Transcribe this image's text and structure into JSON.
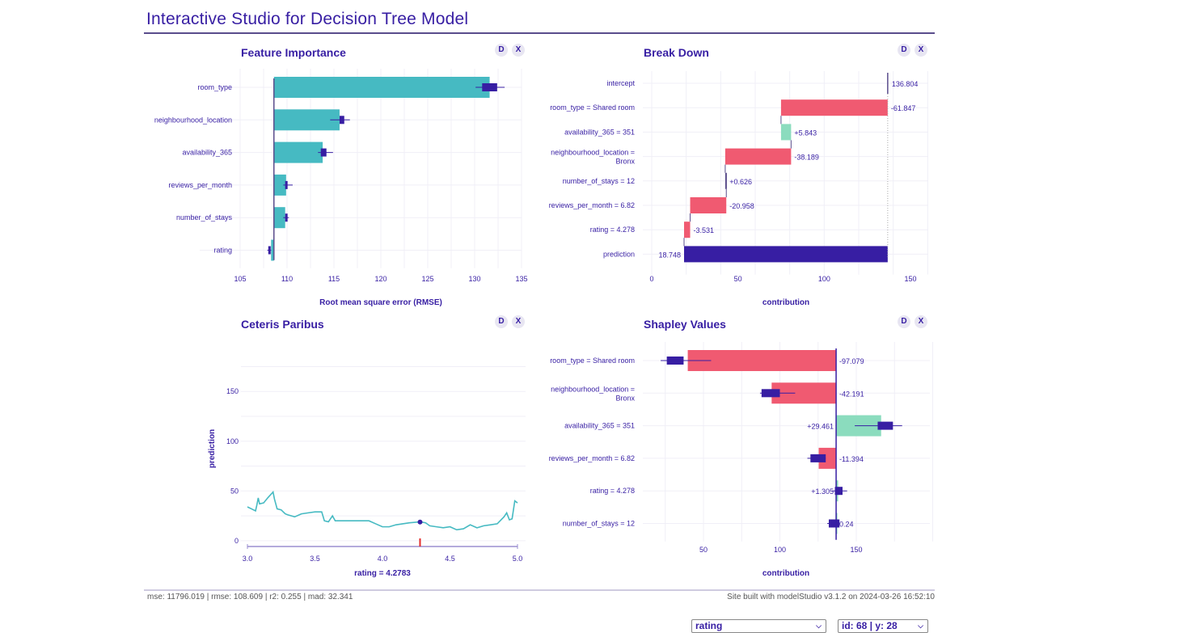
{
  "app": {
    "title": "Interactive Studio for Decision Tree Model"
  },
  "panel_buttons": {
    "describe": "D",
    "close": "X"
  },
  "panels": {
    "feature_importance": {
      "title": "Feature Importance"
    },
    "break_down": {
      "title": "Break Down"
    },
    "ceteris_paribus": {
      "title": "Ceteris Paribus"
    },
    "shapley": {
      "title": "Shapley Values"
    }
  },
  "colors": {
    "title": "#371ea3",
    "bar_fi": "#46bac2",
    "negative": "#f05a71",
    "positive": "#8bdcbe",
    "prediction": "#371ea3",
    "boxplot": "#371ea3",
    "grid": "#f0eff7",
    "cp_line": "#46bac2",
    "cp_marker": "#ae2c87"
  },
  "chart_data": [
    {
      "id": "feature_importance",
      "type": "bar",
      "title": "Feature Importance",
      "xlabel": "Root mean square error (RMSE)",
      "ylabel": "",
      "baseline": 108.6,
      "xlim": [
        105,
        135
      ],
      "xticks": [
        105,
        110,
        115,
        120,
        125,
        130,
        135
      ],
      "grid": true,
      "categories": [
        "room_type",
        "neighbourhood_location",
        "availability_365",
        "reviews_per_month",
        "number_of_stays",
        "rating"
      ],
      "values": [
        131.6,
        115.6,
        113.8,
        109.9,
        109.8,
        108.3
      ],
      "boxplot": [
        {
          "min": 130.1,
          "q1": 130.8,
          "q3": 132.4,
          "max": 133.2
        },
        {
          "min": 114.6,
          "q1": 115.6,
          "q3": 116.1,
          "max": 116.7
        },
        {
          "min": 113.3,
          "q1": 113.6,
          "q3": 114.2,
          "max": 114.9
        },
        {
          "min": 109.6,
          "q1": 109.8,
          "q3": 110.0,
          "max": 110.6
        },
        {
          "min": 109.6,
          "q1": 109.8,
          "q3": 109.9,
          "max": 110.2
        },
        {
          "min": 107.9,
          "q1": 108.0,
          "q3": 108.2,
          "max": 108.3
        }
      ]
    },
    {
      "id": "break_down",
      "type": "bar",
      "title": "Break Down",
      "xlabel": "contribution",
      "xlim": [
        0,
        155
      ],
      "xticks": [
        0,
        50,
        100,
        150
      ],
      "grid": true,
      "categories": [
        "intercept",
        "room_type = Shared room",
        "availability_365 = 351",
        "neighbourhood_location = Bronx",
        "number_of_stays = 12",
        "reviews_per_month = 6.82",
        "rating = 4.278",
        "prediction"
      ],
      "values": [
        136.804,
        -61.847,
        5.843,
        -38.189,
        0.626,
        -20.958,
        -3.531,
        18.748
      ],
      "labels": [
        "136.804",
        "-61.847",
        "+5.843",
        "-38.189",
        "+0.626",
        "-20.958",
        "-3.531",
        "18.748"
      ]
    },
    {
      "id": "ceteris_paribus",
      "type": "line",
      "title": "Ceteris Paribus",
      "xlabel": "rating = 4.2783",
      "ylabel": "prediction",
      "xlim": [
        3.0,
        5.0
      ],
      "ylim": [
        -5,
        190
      ],
      "xticks": [
        "3.0",
        "3.5",
        "4.0",
        "4.5",
        "5.0"
      ],
      "yticks": [
        0,
        50,
        100,
        150
      ],
      "grid": true,
      "observation": {
        "x": 4.2783,
        "y": 18.748
      },
      "x": [
        3.0,
        3.03,
        3.06,
        3.07,
        3.08,
        3.09,
        3.12,
        3.15,
        3.19,
        3.2,
        3.22,
        3.25,
        3.28,
        3.3,
        3.35,
        3.4,
        3.45,
        3.5,
        3.55,
        3.57,
        3.6,
        3.63,
        3.65,
        3.7,
        3.8,
        3.9,
        3.95,
        4.0,
        4.05,
        4.1,
        4.15,
        4.2,
        4.28,
        4.32,
        4.35,
        4.4,
        4.45,
        4.5,
        4.55,
        4.6,
        4.65,
        4.7,
        4.75,
        4.8,
        4.85,
        4.9,
        4.92,
        4.94,
        4.96,
        4.98,
        5.0
      ],
      "y": [
        34,
        32,
        30,
        36,
        43,
        37,
        38,
        43,
        49,
        42,
        32,
        31,
        27,
        26,
        24,
        27,
        28,
        29,
        29,
        20,
        19,
        25,
        20,
        20,
        20,
        20,
        17,
        14,
        14,
        16,
        17,
        18,
        19,
        18,
        15,
        14,
        13,
        14,
        11,
        12,
        16,
        13,
        15,
        16,
        17,
        24,
        28,
        21,
        22,
        40,
        38
      ]
    },
    {
      "id": "shapley",
      "type": "bar",
      "title": "Shapley Values",
      "xlabel": "contribution",
      "baseline": 136.804,
      "xlim": [
        18,
        200
      ],
      "xticks": [
        50,
        100,
        150
      ],
      "grid": true,
      "categories": [
        "room_type = Shared room",
        "neighbourhood_location = Bronx",
        "availability_365 = 351",
        "reviews_per_month = 6.82",
        "rating = 4.278",
        "number_of_stays = 12"
      ],
      "values": [
        -97.079,
        -42.191,
        29.461,
        -11.394,
        1.305,
        0.24
      ],
      "labels": [
        "-97.079",
        "-42.191",
        "+29.461",
        "-11.394",
        "+1.305",
        "0.24"
      ],
      "boxplot": [
        {
          "min": 22,
          "q1": 26,
          "q3": 37,
          "max": 55
        },
        {
          "min": 87,
          "q1": 88,
          "q3": 100,
          "max": 110
        },
        {
          "min": 149,
          "q1": 164,
          "q3": 174,
          "max": 180
        },
        {
          "min": 118,
          "q1": 120,
          "q3": 130,
          "max": 130
        },
        {
          "min": 134,
          "q1": 136,
          "q3": 141,
          "max": 144
        },
        {
          "min": 131,
          "q1": 132,
          "q3": 139,
          "max": 139
        }
      ]
    }
  ],
  "footer": {
    "metrics": "mse: 11796.019 | rmse: 108.609 | r2: 0.255 | mad: 32.341",
    "built_with": "Site built with modelStudio v3.1.2 on 2024-03-26 16:52:10"
  },
  "controls": {
    "variable_select": {
      "value": "rating"
    },
    "observation_select": {
      "value": "id: 68 | y: 28"
    }
  }
}
